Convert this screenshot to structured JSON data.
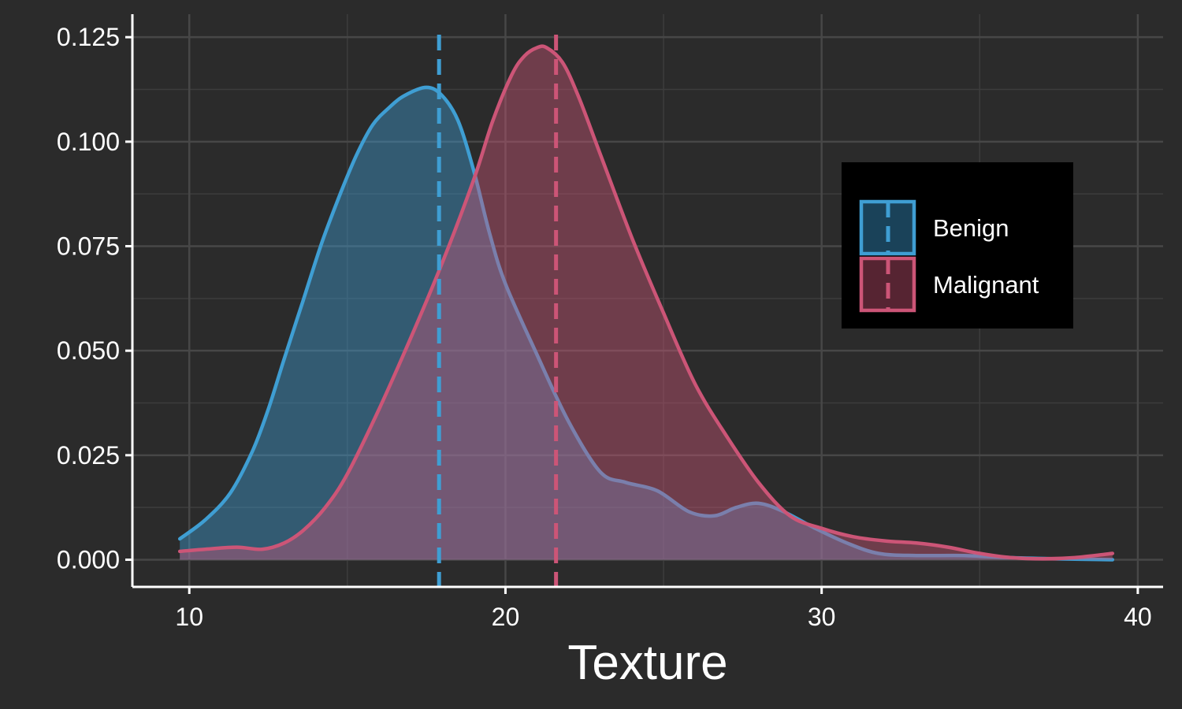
{
  "chart_data": {
    "type": "area",
    "subtype": "density",
    "title": "",
    "xlabel": "Texture",
    "ylabel": "",
    "xlim": [
      8.2,
      40.8
    ],
    "ylim": [
      -0.0065,
      0.1305
    ],
    "x_ticks": [
      10,
      20,
      30,
      40
    ],
    "x_tick_labels": [
      "10",
      "20",
      "30",
      "40"
    ],
    "y_ticks": [
      0,
      0.025,
      0.05,
      0.075,
      0.1,
      0.125
    ],
    "y_tick_labels": [
      "0.000",
      "0.025",
      "0.050",
      "0.075",
      "0.100",
      "0.125"
    ],
    "grid": true,
    "legend_position": "right",
    "series": [
      {
        "name": "Benign",
        "color": "#3f9ed3",
        "fill": "#2b536e",
        "mean": 17.9,
        "x": [
          9.7,
          10.5,
          11.3,
          12.0,
          12.5,
          13.0,
          13.6,
          14.2,
          14.8,
          15.3,
          15.8,
          16.3,
          16.8,
          17.5,
          18.0,
          18.5,
          19.0,
          19.5,
          20.0,
          21.0,
          22.0,
          23.0,
          23.8,
          24.8,
          25.8,
          26.6,
          27.3,
          28.0,
          28.8,
          29.8,
          30.8,
          31.8,
          33.0,
          34.5,
          36.0,
          37.5,
          39.2
        ],
        "y": [
          0.005,
          0.0095,
          0.016,
          0.026,
          0.036,
          0.048,
          0.062,
          0.076,
          0.088,
          0.097,
          0.104,
          0.108,
          0.111,
          0.113,
          0.111,
          0.105,
          0.093,
          0.078,
          0.066,
          0.049,
          0.033,
          0.021,
          0.0185,
          0.0165,
          0.0115,
          0.0105,
          0.0125,
          0.0135,
          0.0115,
          0.0075,
          0.004,
          0.0015,
          0.001,
          0.001,
          0.0005,
          0.0002,
          0.0
        ]
      },
      {
        "name": "Malignant",
        "color": "#cc5577",
        "fill": "#6a3346",
        "mean": 21.6,
        "x": [
          9.7,
          10.5,
          11.5,
          12.3,
          13.0,
          13.6,
          14.3,
          15.0,
          16.0,
          17.0,
          18.0,
          19.0,
          19.6,
          20.2,
          20.6,
          21.0,
          21.3,
          21.8,
          22.3,
          23.0,
          24.0,
          25.0,
          26.0,
          27.0,
          28.0,
          29.0,
          30.0,
          31.0,
          32.0,
          33.0,
          34.0,
          35.0,
          36.0,
          37.0,
          38.0,
          39.2
        ],
        "y": [
          0.002,
          0.0025,
          0.003,
          0.0025,
          0.004,
          0.007,
          0.0125,
          0.0205,
          0.036,
          0.053,
          0.071,
          0.091,
          0.105,
          0.116,
          0.1205,
          0.1225,
          0.1225,
          0.119,
          0.111,
          0.097,
          0.077,
          0.059,
          0.042,
          0.0295,
          0.0185,
          0.0105,
          0.0075,
          0.0055,
          0.0045,
          0.004,
          0.003,
          0.0015,
          0.0005,
          0.0002,
          0.0005,
          0.0015
        ]
      }
    ]
  }
}
